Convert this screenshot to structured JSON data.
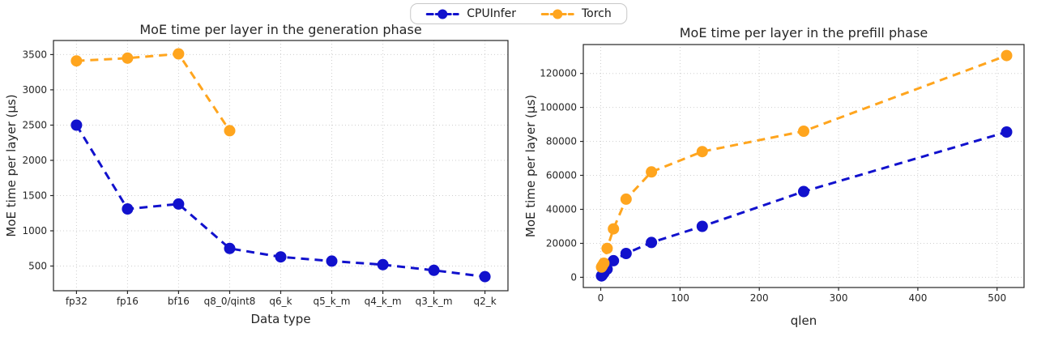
{
  "figure": {
    "background": "#ffffff",
    "text_color": "#262626"
  },
  "legend": {
    "items": [
      {
        "label": "CPUInfer",
        "color": "#1111cd"
      },
      {
        "label": "Torch",
        "color": "#ffa51e"
      }
    ]
  },
  "chart_data": [
    {
      "type": "line",
      "title": "MoE time per layer in the generation phase",
      "xlabel": "Data type",
      "ylabel": "MoE time per layer (µs)",
      "categories": [
        "fp32",
        "fp16",
        "bf16",
        "q8_0/qint8",
        "q6_k",
        "q5_k_m",
        "q4_k_m",
        "q3_k_m",
        "q2_k"
      ],
      "series": [
        {
          "name": "CPUInfer",
          "color": "#1111cd",
          "values": [
            2500,
            1310,
            1380,
            750,
            630,
            570,
            520,
            440,
            350
          ]
        },
        {
          "name": "Torch",
          "color": "#ffa51e",
          "values": [
            3410,
            3450,
            3510,
            2420,
            null,
            null,
            null,
            null,
            null
          ]
        }
      ],
      "ylim": [
        150,
        3700
      ],
      "yticks": [
        500,
        1000,
        1500,
        2000,
        2500,
        3000,
        3500
      ],
      "grid": true,
      "line_style": "dashed",
      "marker": "circle",
      "legend_position": "figure-top-center"
    },
    {
      "type": "line",
      "title": "MoE time per layer in the prefill phase",
      "xlabel": "qlen",
      "ylabel": "MoE time per layer (µs)",
      "x": [
        1,
        2,
        4,
        8,
        16,
        32,
        64,
        128,
        256,
        512
      ],
      "series": [
        {
          "name": "CPUInfer",
          "color": "#1111cd",
          "values": [
            800,
            1400,
            2600,
            4800,
            9800,
            14000,
            20500,
            30000,
            50500,
            85500
          ]
        },
        {
          "name": "Torch",
          "color": "#ffa51e",
          "values": [
            6000,
            6800,
            8300,
            17000,
            28500,
            46000,
            62000,
            74000,
            86000,
            130500
          ]
        }
      ],
      "xlim": [
        -22,
        534
      ],
      "ylim": [
        -6000,
        137000
      ],
      "xticks": [
        0,
        100,
        200,
        300,
        400,
        500
      ],
      "yticks": [
        0,
        20000,
        40000,
        60000,
        80000,
        100000,
        120000
      ],
      "grid": true,
      "line_style": "dashed",
      "marker": "circle",
      "legend_position": "figure-top-center"
    }
  ]
}
